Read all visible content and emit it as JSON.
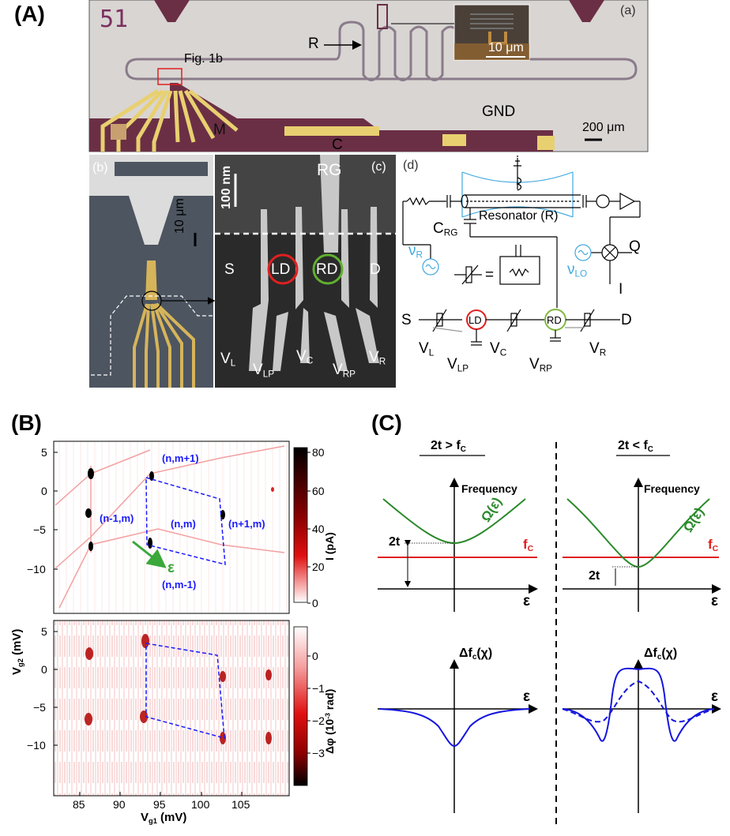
{
  "panelA": {
    "label": "(A)",
    "sub_a": "(a)",
    "chip_label": "51",
    "fig1b": "Fig. 1b",
    "arrow_r": "R",
    "inset_scale": "10 μm",
    "gnd": "GND",
    "m": "M",
    "c": "C",
    "scale": "200 μm",
    "sub_b": "(b)",
    "b_scale": "10 μm",
    "sub_c": "(c)",
    "c_scale": "100 nm",
    "rg": "RG",
    "s": "S",
    "d": "D",
    "ld": "LD",
    "rd": "RD",
    "vl": "V",
    "vl_sub": "L",
    "vlp": "V",
    "vlp_sub": "LP",
    "vc": "V",
    "vc_sub": "C",
    "vrp": "V",
    "vrp_sub": "RP",
    "vr": "V",
    "vr_sub": "R",
    "sub_d": "(d)",
    "resonator": "Resonator (R)",
    "crg": "C",
    "crg_sub": "RG",
    "nu_r": "ν",
    "nu_r_sub": "R",
    "nu_lo": "ν",
    "nu_lo_sub": "LO",
    "q": "Q",
    "i": "I",
    "equals": "=",
    "cs": "S",
    "cd": "D",
    "cld": "LD",
    "crd": "RD"
  },
  "panelB": {
    "label": "(B)",
    "ylabel": "V",
    "ylabel_sub": "g2",
    "ylabel_unit": " (mV)",
    "xlabel": "V",
    "xlabel_sub": "g1",
    "xlabel_unit": " (mV)",
    "cbar_top_label": "I (pA)",
    "cbar_bottom_label": "Δφ (10",
    "cbar_bottom_exp": "-3",
    "cbar_bottom_unit": " rad)",
    "cbar_top_ticks": [
      "80",
      "60",
      "40",
      "20",
      "0"
    ],
    "cbar_bottom_ticks": [
      "0",
      "−1",
      "−2",
      "−3"
    ],
    "yticks": [
      "5",
      "0",
      "−5",
      "−10"
    ],
    "xticks": [
      "85",
      "90",
      "95",
      "100",
      "105"
    ],
    "charge_states": [
      "(n,m+1)",
      "(n-1,m)",
      "(n,m)",
      "(n+1,m)",
      "(n,m-1)"
    ],
    "epsilon": "ε",
    "colors": {
      "dashed": "#1a1aff",
      "arrow": "#3aa83a",
      "map": "#cc0000"
    }
  },
  "panelC": {
    "label": "(C)",
    "left_title": "2t > f",
    "left_title_sub": "C",
    "right_title": "2t < f",
    "right_title_sub": "C",
    "frequency": "Frequency",
    "omega": "Ω(ε)",
    "fc": "f",
    "fc_sub": "C",
    "two_t": "2t",
    "epsilon": "ε",
    "dfc": "Δf",
    "dfc_sub": "c",
    "dfc_arg": "(χ)",
    "colors": {
      "omega": "#2a8a2a",
      "fc": "#e02020",
      "dfc": "#1515e0"
    }
  }
}
